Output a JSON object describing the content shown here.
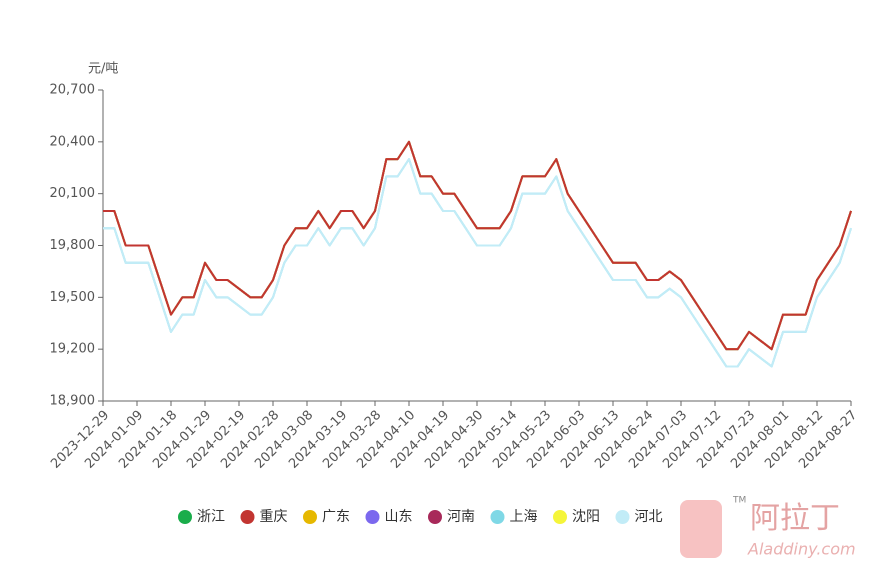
{
  "chart_data": {
    "type": "line",
    "y_unit": "元/吨",
    "categories": [
      "2023-12-29",
      null,
      null,
      "2024-01-09",
      null,
      null,
      "2024-01-18",
      null,
      null,
      "2024-01-29",
      null,
      null,
      "2024-02-19",
      null,
      null,
      "2024-02-28",
      null,
      null,
      "2024-03-08",
      null,
      null,
      "2024-03-19",
      null,
      null,
      "2024-03-28",
      null,
      null,
      "2024-04-10",
      null,
      null,
      "2024-04-19",
      null,
      null,
      "2024-04-30",
      null,
      null,
      "2024-05-14",
      null,
      null,
      "2024-05-23",
      null,
      null,
      "2024-06-03",
      null,
      null,
      "2024-06-13",
      null,
      null,
      "2024-06-24",
      null,
      null,
      "2024-07-03",
      null,
      null,
      "2024-07-12",
      null,
      null,
      "2024-07-23",
      null,
      null,
      "2024-08-01",
      null,
      null,
      "2024-08-12",
      null,
      null,
      "2024-08-27"
    ],
    "series": [
      {
        "name": "浙江",
        "color": "#1aad4b",
        "values": [
          20000,
          20000,
          19800,
          19800,
          19800,
          19600,
          19400,
          19500,
          19500,
          19700,
          19600,
          19600,
          19550,
          19500,
          19500,
          19600,
          19800,
          19900,
          19900,
          20000,
          19900,
          20000,
          20000,
          19900,
          20000,
          20300,
          20300,
          20400,
          20200,
          20200,
          20100,
          20100,
          20000,
          19900,
          19900,
          19900,
          20000,
          20200,
          20200,
          20200,
          20300,
          20100,
          20000,
          19900,
          19800,
          19700,
          19700,
          19700,
          19600,
          19600,
          19650,
          19600,
          19500,
          19400,
          19300,
          19200,
          19200,
          19300,
          19250,
          19200,
          19400,
          19400,
          19400,
          19600,
          19700,
          19800,
          20000
        ]
      },
      {
        "name": "重庆",
        "color": "#c23531",
        "values": [
          20000,
          20000,
          19800,
          19800,
          19800,
          19600,
          19400,
          19500,
          19500,
          19700,
          19600,
          19600,
          19550,
          19500,
          19500,
          19600,
          19800,
          19900,
          19900,
          20000,
          19900,
          20000,
          20000,
          19900,
          20000,
          20300,
          20300,
          20400,
          20200,
          20200,
          20100,
          20100,
          20000,
          19900,
          19900,
          19900,
          20000,
          20200,
          20200,
          20200,
          20300,
          20100,
          20000,
          19900,
          19800,
          19700,
          19700,
          19700,
          19600,
          19600,
          19650,
          19600,
          19500,
          19400,
          19300,
          19200,
          19200,
          19300,
          19250,
          19200,
          19400,
          19400,
          19400,
          19600,
          19700,
          19800,
          20000
        ]
      },
      {
        "name": "广东",
        "color": "#e6b800",
        "values": [
          20000,
          20000,
          19800,
          19800,
          19800,
          19600,
          19400,
          19500,
          19500,
          19700,
          19600,
          19600,
          19550,
          19500,
          19500,
          19600,
          19800,
          19900,
          19900,
          20000,
          19900,
          20000,
          20000,
          19900,
          20000,
          20300,
          20300,
          20400,
          20200,
          20200,
          20100,
          20100,
          20000,
          19900,
          19900,
          19900,
          20000,
          20200,
          20200,
          20200,
          20300,
          20100,
          20000,
          19900,
          19800,
          19700,
          19700,
          19700,
          19600,
          19600,
          19650,
          19600,
          19500,
          19400,
          19300,
          19200,
          19200,
          19300,
          19250,
          19200,
          19400,
          19400,
          19400,
          19600,
          19700,
          19800,
          20000
        ]
      },
      {
        "name": "山东",
        "color": "#7b68ee",
        "values": [
          20000,
          20000,
          19800,
          19800,
          19800,
          19600,
          19400,
          19500,
          19500,
          19700,
          19600,
          19600,
          19550,
          19500,
          19500,
          19600,
          19800,
          19900,
          19900,
          20000,
          19900,
          20000,
          20000,
          19900,
          20000,
          20300,
          20300,
          20400,
          20200,
          20200,
          20100,
          20100,
          20000,
          19900,
          19900,
          19900,
          20000,
          20200,
          20200,
          20200,
          20300,
          20100,
          20000,
          19900,
          19800,
          19700,
          19700,
          19700,
          19600,
          19600,
          19650,
          19600,
          19500,
          19400,
          19300,
          19200,
          19200,
          19300,
          19250,
          19200,
          19400,
          19400,
          19400,
          19600,
          19700,
          19800,
          20000
        ]
      },
      {
        "name": "河南",
        "color": "#a8295a",
        "values": [
          20000,
          20000,
          19800,
          19800,
          19800,
          19600,
          19400,
          19500,
          19500,
          19700,
          19600,
          19600,
          19550,
          19500,
          19500,
          19600,
          19800,
          19900,
          19900,
          20000,
          19900,
          20000,
          20000,
          19900,
          20000,
          20300,
          20300,
          20400,
          20200,
          20200,
          20100,
          20100,
          20000,
          19900,
          19900,
          19900,
          20000,
          20200,
          20200,
          20200,
          20300,
          20100,
          20000,
          19900,
          19800,
          19700,
          19700,
          19700,
          19600,
          19600,
          19650,
          19600,
          19500,
          19400,
          19300,
          19200,
          19200,
          19300,
          19250,
          19200,
          19400,
          19400,
          19400,
          19600,
          19700,
          19800,
          20000
        ]
      },
      {
        "name": "上海",
        "color": "#7fd8e6",
        "values": [
          19900,
          19900,
          19700,
          19700,
          19700,
          19500,
          19300,
          19400,
          19400,
          19600,
          19500,
          19500,
          19450,
          19400,
          19400,
          19500,
          19700,
          19800,
          19800,
          19900,
          19800,
          19900,
          19900,
          19800,
          19900,
          20200,
          20200,
          20300,
          20100,
          20100,
          20000,
          20000,
          19900,
          19800,
          19800,
          19800,
          19900,
          20100,
          20100,
          20100,
          20200,
          20000,
          19900,
          19800,
          19700,
          19600,
          19600,
          19600,
          19500,
          19500,
          19550,
          19500,
          19400,
          19300,
          19200,
          19100,
          19100,
          19200,
          19150,
          19100,
          19300,
          19300,
          19300,
          19500,
          19600,
          19700,
          19900
        ]
      },
      {
        "name": "沈阳",
        "color": "#f5f53a",
        "values": [
          20000,
          20000,
          19800,
          19800,
          19800,
          19600,
          19400,
          19500,
          19500,
          19700,
          19600,
          19600,
          19550,
          19500,
          19500,
          19600,
          19800,
          19900,
          19900,
          20000,
          19900,
          20000,
          20000,
          19900,
          20000,
          20300,
          20300,
          20400,
          20200,
          20200,
          20100,
          20100,
          20000,
          19900,
          19900,
          19900,
          20000,
          20200,
          20200,
          20200,
          20300,
          20100,
          20000,
          19900,
          19800,
          19700,
          19700,
          19700,
          19600,
          19600,
          19650,
          19600,
          19500,
          19400,
          19300,
          19200,
          19200,
          19300,
          19250,
          19200,
          19400,
          19400,
          19400,
          19600,
          19700,
          19800,
          20000
        ]
      },
      {
        "name": "河北",
        "color": "#c2ecf7",
        "values": [
          19900,
          19900,
          19700,
          19700,
          19700,
          19500,
          19300,
          19400,
          19400,
          19600,
          19500,
          19500,
          19450,
          19400,
          19400,
          19500,
          19700,
          19800,
          19800,
          19900,
          19800,
          19900,
          19900,
          19800,
          19900,
          20200,
          20200,
          20300,
          20100,
          20100,
          20000,
          20000,
          19900,
          19800,
          19800,
          19800,
          19900,
          20100,
          20100,
          20100,
          20200,
          20000,
          19900,
          19800,
          19700,
          19600,
          19600,
          19600,
          19500,
          19500,
          19550,
          19500,
          19400,
          19300,
          19200,
          19100,
          19100,
          19200,
          19150,
          19100,
          19300,
          19300,
          19300,
          19500,
          19600,
          19700,
          19900
        ]
      }
    ],
    "ylim": [
      18900,
      20700
    ],
    "yticks": [
      {
        "value": 18900,
        "label": "18,900"
      },
      {
        "value": 19200,
        "label": "19,200"
      },
      {
        "value": 19500,
        "label": "19,500"
      },
      {
        "value": 19800,
        "label": "19,800"
      },
      {
        "value": 20100,
        "label": "20,100"
      },
      {
        "value": 20400,
        "label": "20,400"
      },
      {
        "value": 20700,
        "label": "20,700"
      }
    ],
    "grid": false,
    "legend": "bottom"
  },
  "logo": {
    "name": "阿拉丁",
    "url": "Aladdiny.com",
    "mark": "TM"
  }
}
